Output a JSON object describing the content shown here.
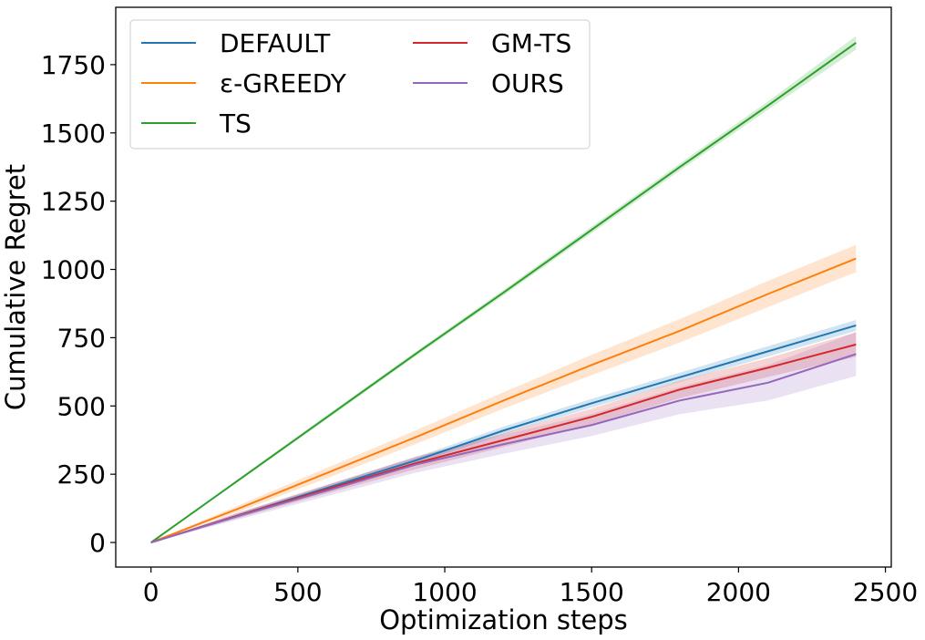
{
  "chart_data": {
    "type": "line",
    "title": "",
    "xlabel": "Optimization steps",
    "ylabel": "Cumulative Regret",
    "xlim": [
      -120,
      2520
    ],
    "ylim": [
      -90,
      1960
    ],
    "xticks": [
      0,
      500,
      1000,
      1500,
      2000,
      2500
    ],
    "yticks": [
      0,
      250,
      500,
      750,
      1000,
      1250,
      1500,
      1750
    ],
    "grid": false,
    "legend": {
      "placement": "top-left",
      "columns": 2
    },
    "series": [
      {
        "name": "DEFAULT",
        "color": "#1f77b4",
        "x": [
          0,
          300,
          600,
          900,
          1200,
          1500,
          1800,
          2100,
          2400
        ],
        "y": [
          0,
          100,
          200,
          300,
          410,
          510,
          605,
          700,
          795
        ],
        "band": [
          [
            0,
            0
          ],
          [
            92,
            108
          ],
          [
            190,
            210
          ],
          [
            288,
            312
          ],
          [
            396,
            424
          ],
          [
            494,
            526
          ],
          [
            588,
            622
          ],
          [
            681,
            719
          ],
          [
            775,
            815
          ]
        ]
      },
      {
        "name": "ε-GREEDY",
        "color": "#ff7f0e",
        "x": [
          0,
          300,
          600,
          900,
          1200,
          1500,
          1800,
          2100,
          2400
        ],
        "y": [
          0,
          125,
          255,
          385,
          520,
          650,
          775,
          910,
          1040
        ],
        "band": [
          [
            0,
            0
          ],
          [
            113,
            137
          ],
          [
            236,
            274
          ],
          [
            360,
            410
          ],
          [
            490,
            550
          ],
          [
            613,
            687
          ],
          [
            732,
            818
          ],
          [
            862,
            958
          ],
          [
            990,
            1090
          ]
        ]
      },
      {
        "name": "TS",
        "color": "#2ca02c",
        "x": [
          0,
          300,
          600,
          900,
          1200,
          1500,
          1800,
          2100,
          2400
        ],
        "y": [
          0,
          230,
          460,
          690,
          915,
          1145,
          1375,
          1600,
          1830
        ],
        "band": [
          [
            0,
            0
          ],
          [
            225,
            235
          ],
          [
            453,
            467
          ],
          [
            682,
            698
          ],
          [
            905,
            925
          ],
          [
            1133,
            1157
          ],
          [
            1362,
            1388
          ],
          [
            1585,
            1615
          ],
          [
            1805,
            1855
          ]
        ]
      },
      {
        "name": "GM-TS",
        "color": "#d62728",
        "x": [
          0,
          300,
          600,
          900,
          1200,
          1500,
          1800,
          2100,
          2400
        ],
        "y": [
          0,
          100,
          195,
          290,
          375,
          460,
          560,
          640,
          725
        ],
        "band": [
          [
            0,
            0
          ],
          [
            90,
            110
          ],
          [
            180,
            212
          ],
          [
            268,
            312
          ],
          [
            350,
            400
          ],
          [
            432,
            490
          ],
          [
            528,
            592
          ],
          [
            606,
            675
          ],
          [
            680,
            770
          ]
        ]
      },
      {
        "name": "OURS",
        "color": "#9467bd",
        "x": [
          0,
          300,
          600,
          900,
          1200,
          1500,
          1800,
          2100,
          2400
        ],
        "y": [
          0,
          98,
          190,
          285,
          360,
          430,
          520,
          585,
          690
        ],
        "band": [
          [
            0,
            0
          ],
          [
            85,
            110
          ],
          [
            170,
            210
          ],
          [
            255,
            315
          ],
          [
            325,
            395
          ],
          [
            390,
            470
          ],
          [
            470,
            570
          ],
          [
            520,
            650
          ],
          [
            610,
            770
          ]
        ]
      }
    ]
  }
}
